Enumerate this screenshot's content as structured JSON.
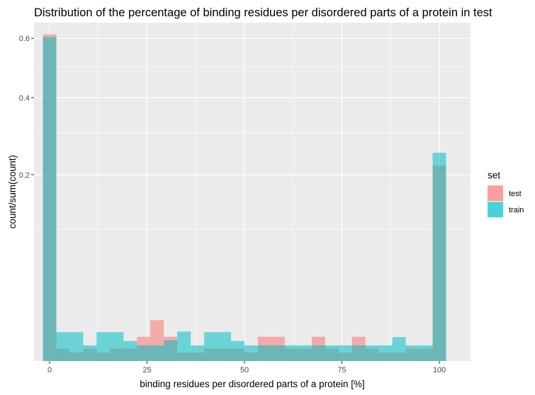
{
  "chart_data": {
    "type": "bar",
    "title": "Distribution of the percentage of binding residues per disordered parts of a protein in test",
    "xlabel": "binding residues per disordered parts of a protein [%]",
    "ylabel": "count/sum(count)",
    "x_ticks": [
      0,
      25,
      50,
      75,
      100
    ],
    "y_ticks": [
      0.2,
      0.4,
      0.6
    ],
    "y_scale": "sqrt",
    "xlim": [
      -4,
      108
    ],
    "ylim": [
      0,
      0.66
    ],
    "grid": true,
    "bin_width": 3.45,
    "bins_start": [
      -1.72,
      1.72,
      5.17,
      8.62,
      12.07,
      15.52,
      18.97,
      22.41,
      25.86,
      29.31,
      32.76,
      36.21,
      39.66,
      43.1,
      46.55,
      50.0,
      53.45,
      56.9,
      60.34,
      63.79,
      67.24,
      70.69,
      74.14,
      77.59,
      81.03,
      84.48,
      87.93,
      91.38,
      94.83,
      98.28
    ],
    "series": [
      {
        "name": "test",
        "color": "#F8766D",
        "values": [
          0.615,
          0.0009,
          0.0004,
          0.0009,
          0.0004,
          0.0009,
          0.0009,
          0.0034,
          0.0096,
          0.0034,
          0.0004,
          0.0004,
          0.0009,
          0.0009,
          0.0009,
          0.0004,
          0.0034,
          0.0034,
          0.0009,
          0.0009,
          0.0034,
          0.0009,
          0.0004,
          0.0034,
          0.0009,
          0.0004,
          0.0004,
          0.0009,
          0.0009,
          0.22
        ]
      },
      {
        "name": "train",
        "color": "#00BFC4",
        "values": [
          0.605,
          0.0048,
          0.0048,
          0.0014,
          0.0048,
          0.0048,
          0.0023,
          0.0014,
          0.0014,
          0.0025,
          0.005,
          0.0014,
          0.0048,
          0.0048,
          0.0023,
          0.0014,
          0.0014,
          0.0014,
          0.0014,
          0.0014,
          0.0014,
          0.0014,
          0.0014,
          0.0014,
          0.0014,
          0.0014,
          0.0033,
          0.0014,
          0.0014,
          0.25
        ]
      }
    ],
    "legend": {
      "title": "set",
      "position": "right",
      "entries": [
        "test",
        "train"
      ]
    }
  }
}
